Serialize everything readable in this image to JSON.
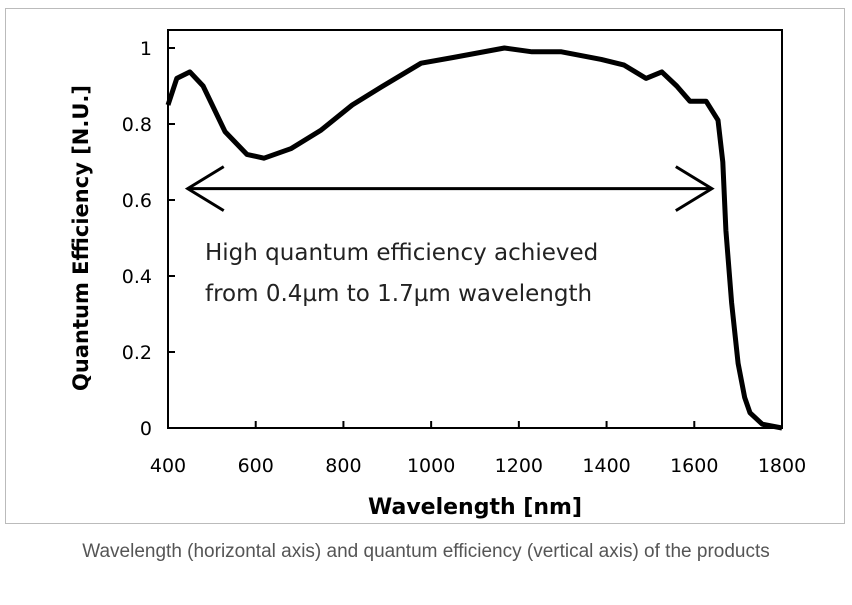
{
  "chart_data": {
    "type": "line",
    "xlabel": "Wavelength [nm]",
    "ylabel": "Quantum Efficiency [N.U.]",
    "xlim": [
      400,
      1800
    ],
    "ylim": [
      0,
      1
    ],
    "xticks": [
      400,
      600,
      800,
      1000,
      1200,
      1400,
      1600,
      1800
    ],
    "yticks": [
      0,
      0.2,
      0.4,
      0.6,
      0.8,
      1
    ],
    "ytick_labels": [
      "0",
      "0.2",
      "0.4",
      "0.6",
      "0.8",
      "1"
    ],
    "grid": false,
    "series": [
      {
        "x": [
          400,
          420,
          450,
          480,
          530,
          580,
          619,
          680,
          749,
          820,
          886,
          977,
          1050,
          1167,
          1230,
          1297,
          1388,
          1440,
          1490,
          1526,
          1560,
          1590,
          1627,
          1654,
          1665,
          1672,
          1685,
          1700,
          1715,
          1727,
          1755,
          1800
        ],
        "y": [
          0.85,
          0.92,
          0.937,
          0.9,
          0.78,
          0.72,
          0.71,
          0.735,
          0.784,
          0.85,
          0.897,
          0.96,
          0.975,
          1.0,
          0.99,
          0.99,
          0.97,
          0.955,
          0.92,
          0.937,
          0.9,
          0.86,
          0.86,
          0.81,
          0.7,
          0.52,
          0.33,
          0.17,
          0.08,
          0.04,
          0.01,
          0.0
        ],
        "color": "#000000"
      }
    ],
    "annotation": {
      "text_line1": "High quantum efficiency achieved",
      "text_line2": "from 0.4µm to 1.7µm wavelength",
      "arrow_from": 445,
      "arrow_to": 1640,
      "arrow_y": 0.63
    }
  },
  "caption": "Wavelength (horizontal axis) and quantum efficiency (vertical axis) of the products"
}
